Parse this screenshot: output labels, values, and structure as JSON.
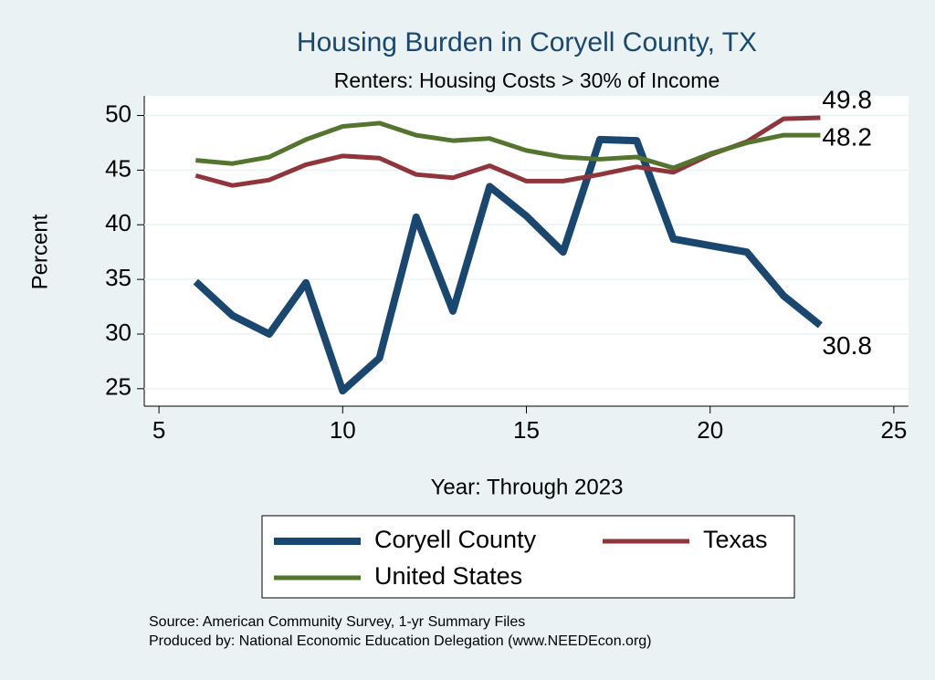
{
  "chart_data": {
    "type": "line",
    "title": "Housing Burden in Coryell County, TX",
    "subtitle": "Renters: Housing Costs > 30% of Income",
    "x_label": "Year: Through 2023",
    "y_label": "Percent",
    "x": [
      6,
      7,
      8,
      9,
      10,
      11,
      12,
      13,
      14,
      15,
      16,
      17,
      18,
      19,
      20,
      21,
      22,
      23
    ],
    "series": [
      {
        "name": "Coryell County",
        "color": "#1a476f",
        "values": [
          34.8,
          31.7,
          30.0,
          34.7,
          24.8,
          27.8,
          40.7,
          32.1,
          43.5,
          40.8,
          37.5,
          47.8,
          47.7,
          38.7,
          38.1,
          37.5,
          33.5,
          30.8
        ]
      },
      {
        "name": "Texas",
        "color": "#90353b",
        "values": [
          44.5,
          43.6,
          44.1,
          45.5,
          46.3,
          46.1,
          44.6,
          44.3,
          45.4,
          44.0,
          44.0,
          44.6,
          45.3,
          44.8,
          46.4,
          47.6,
          49.7,
          49.8
        ]
      },
      {
        "name": "United States",
        "color": "#55752f",
        "values": [
          45.9,
          45.6,
          46.2,
          47.8,
          49.0,
          49.3,
          48.2,
          47.7,
          47.9,
          46.8,
          46.2,
          46.0,
          46.2,
          45.2,
          46.5,
          47.5,
          48.2,
          48.2
        ]
      }
    ],
    "xlim": [
      4.6,
      25.4
    ],
    "xticks": [
      5,
      10,
      15,
      20,
      25
    ],
    "ylim": [
      23.4,
      51.8
    ],
    "yticks": [
      25,
      30,
      35,
      40,
      45,
      50
    ],
    "grid": true,
    "notes": [
      "Source: American Community Survey, 1-yr Summary Files",
      "Produced by: National Economic Education Delegation (www.NEEDEcon.org)"
    ]
  }
}
